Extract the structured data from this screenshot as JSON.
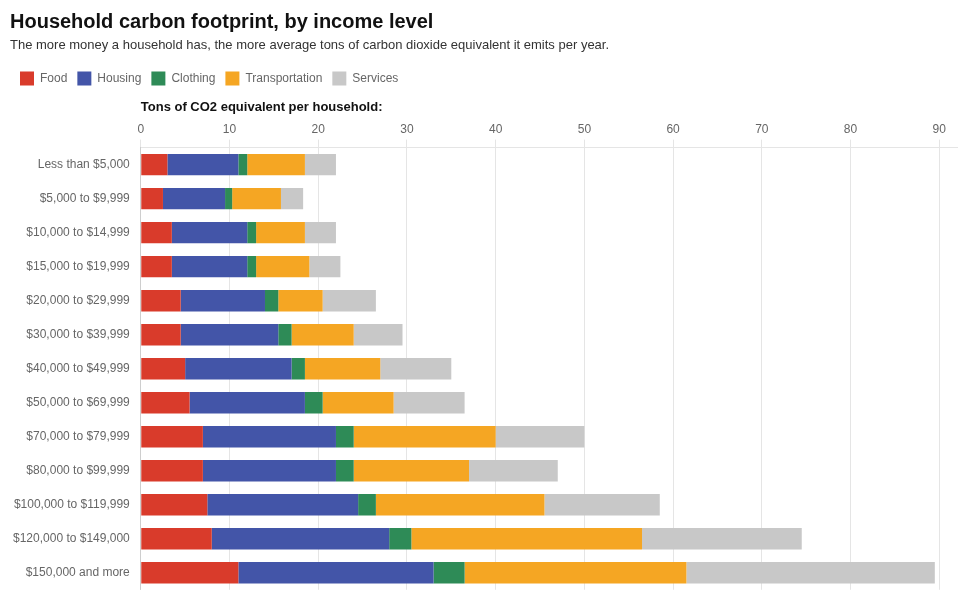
{
  "chart_data": {
    "type": "bar",
    "orientation": "horizontal",
    "stacked": true,
    "title": "Household carbon footprint, by income level",
    "subtitle": "The more money a household has, the more average tons of carbon dioxide equivalent it emits per year.",
    "xlabel": "Tons of CO2 equivalent per household:",
    "categories": [
      "Less than $5,000",
      "$5,000 to $9,999",
      "$10,000 to $14,999",
      "$15,000 to $19,999",
      "$20,000 to $29,999",
      "$30,000 to $39,999",
      "$40,000 to $49,999",
      "$50,000 to $69,999",
      "$70,000 to $79,999",
      "$80,000 to $99,999",
      "$100,000 to $119,999",
      "$120,000 to $149,000",
      "$150,000 and more"
    ],
    "series": [
      {
        "name": "Food",
        "color": "#d93b2b",
        "values": [
          3.0,
          2.5,
          3.5,
          3.5,
          4.5,
          4.5,
          5.0,
          5.5,
          7.0,
          7.0,
          7.5,
          8.0,
          11.0
        ]
      },
      {
        "name": "Housing",
        "color": "#4355a8",
        "values": [
          8.0,
          7.0,
          8.5,
          8.5,
          9.5,
          11.0,
          12.0,
          13.0,
          15.0,
          15.0,
          17.0,
          20.0,
          22.0
        ]
      },
      {
        "name": "Clothing",
        "color": "#2e8b57",
        "values": [
          1.0,
          0.8,
          1.0,
          1.0,
          1.5,
          1.5,
          1.5,
          2.0,
          2.0,
          2.0,
          2.0,
          2.5,
          3.5
        ]
      },
      {
        "name": "Transportation",
        "color": "#f5a623",
        "values": [
          6.5,
          5.5,
          5.5,
          6.0,
          5.0,
          7.0,
          8.5,
          8.0,
          16.0,
          13.0,
          19.0,
          26.0,
          25.0
        ]
      },
      {
        "name": "Services",
        "color": "#c8c8c8",
        "values": [
          3.5,
          2.5,
          3.5,
          3.5,
          6.0,
          5.5,
          8.0,
          8.0,
          10.0,
          10.0,
          13.0,
          18.0,
          28.0
        ]
      }
    ],
    "xlim": [
      0,
      92
    ],
    "xticks": [
      0,
      10,
      20,
      30,
      40,
      50,
      60,
      70,
      80,
      90
    ],
    "grid": true,
    "legend": "top-left"
  }
}
